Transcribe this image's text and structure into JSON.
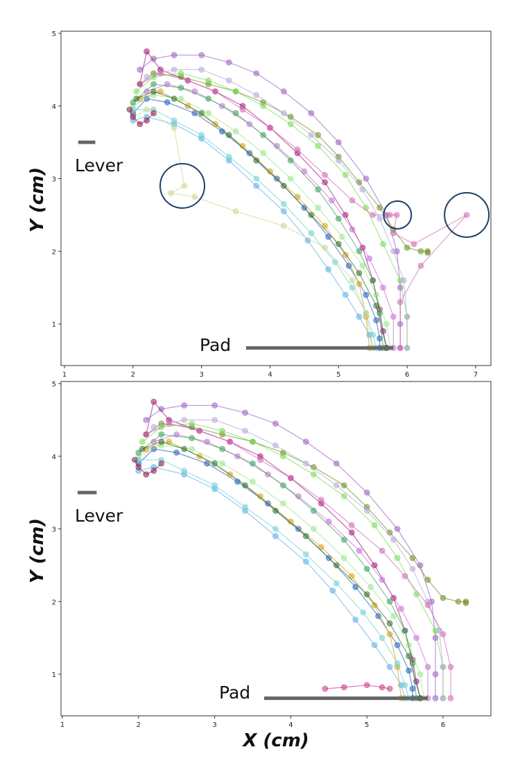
{
  "chart_data": [
    {
      "type": "line",
      "panel": "top",
      "xlim": [
        1,
        7
      ],
      "ylim": [
        0.55,
        5
      ],
      "xticks": [
        1,
        2,
        3,
        4,
        5,
        6,
        7
      ],
      "yticks": [
        1,
        2,
        3,
        4,
        5
      ],
      "xlabel": "",
      "ylabel": "Y (cm)",
      "markers": true,
      "grid": false,
      "lever": {
        "label": "Lever",
        "x": [
          1.2,
          1.45
        ],
        "y": 3.5
      },
      "pad": {
        "label": "Pad",
        "x": [
          3.65,
          5.8
        ],
        "y": 0.67
      },
      "highlighted_outliers": [
        {
          "x": 2.72,
          "y": 2.9
        },
        {
          "x": 5.86,
          "y": 2.5
        },
        {
          "x": 6.87,
          "y": 2.5
        }
      ],
      "series": [
        {
          "color": "#9b5fc0",
          "x": [
            2.1,
            2.3,
            2.6,
            3.0,
            3.4,
            3.8,
            4.2,
            4.6,
            5.0,
            5.4,
            5.7,
            5.85,
            5.9,
            5.9,
            5.9
          ],
          "y": [
            4.5,
            4.65,
            4.7,
            4.7,
            4.6,
            4.45,
            4.2,
            3.9,
            3.5,
            3.0,
            2.5,
            2.0,
            1.5,
            1.0,
            0.67
          ]
        },
        {
          "color": "#6b8e23",
          "x": [
            2.1,
            2.3,
            2.7,
            3.1,
            3.5,
            3.9,
            4.3,
            4.7,
            5.0,
            5.3,
            5.6,
            5.8,
            6.0,
            6.2,
            6.3,
            6.3
          ],
          "y": [
            4.3,
            4.45,
            4.4,
            4.3,
            4.2,
            4.05,
            3.85,
            3.6,
            3.3,
            2.95,
            2.6,
            2.3,
            2.05,
            2.0,
            2.0,
            1.98
          ]
        },
        {
          "color": "#77dd55",
          "x": [
            2.05,
            2.3,
            2.7,
            3.1,
            3.5,
            3.9,
            4.3,
            4.7,
            5.1,
            5.4,
            5.65,
            5.9,
            6.0,
            6.0
          ],
          "y": [
            4.2,
            4.4,
            4.45,
            4.35,
            4.2,
            4.0,
            3.75,
            3.45,
            3.05,
            2.6,
            2.1,
            1.6,
            1.1,
            0.67
          ]
        },
        {
          "color": "#1f5fbf",
          "x": [
            2.0,
            2.2,
            2.5,
            2.9,
            3.3,
            3.7,
            4.1,
            4.5,
            4.85,
            5.15,
            5.4,
            5.55,
            5.6,
            5.6
          ],
          "y": [
            3.9,
            4.1,
            4.05,
            3.9,
            3.65,
            3.35,
            3.0,
            2.6,
            2.2,
            1.8,
            1.4,
            1.05,
            0.8,
            0.67
          ]
        },
        {
          "color": "#5aaee8",
          "x": [
            2.0,
            2.2,
            2.6,
            3.0,
            3.4,
            3.8,
            4.2,
            4.55,
            4.85,
            5.1,
            5.3,
            5.45,
            5.5
          ],
          "y": [
            3.8,
            3.85,
            3.75,
            3.55,
            3.25,
            2.9,
            2.55,
            2.15,
            1.75,
            1.4,
            1.1,
            0.85,
            0.67
          ]
        },
        {
          "color": "#a0177a",
          "x": [
            2.1,
            2.2,
            2.4,
            2.8,
            3.2,
            3.6,
            4.0,
            4.4,
            4.8,
            5.1,
            5.35,
            5.5,
            5.6,
            5.65,
            5.7
          ],
          "y": [
            4.3,
            4.75,
            4.5,
            4.35,
            4.2,
            4.0,
            3.7,
            3.35,
            2.95,
            2.5,
            2.05,
            1.6,
            1.2,
            0.9,
            0.67
          ]
        },
        {
          "color": "#c46fd6",
          "x": [
            2.2,
            2.5,
            2.9,
            3.3,
            3.7,
            4.1,
            4.5,
            4.9,
            5.2,
            5.45,
            5.65,
            5.8,
            5.8
          ],
          "y": [
            4.2,
            4.3,
            4.2,
            4.0,
            3.75,
            3.45,
            3.1,
            2.7,
            2.3,
            1.9,
            1.5,
            1.1,
            0.67
          ]
        },
        {
          "color": "#98e88a",
          "x": [
            2.0,
            2.3,
            2.7,
            3.1,
            3.5,
            3.9,
            4.3,
            4.7,
            5.05,
            5.35,
            5.55,
            5.7,
            5.75
          ],
          "y": [
            4.0,
            4.15,
            4.1,
            3.9,
            3.65,
            3.35,
            3.0,
            2.6,
            2.2,
            1.8,
            1.4,
            1.0,
            0.67
          ]
        },
        {
          "color": "#d4a017",
          "x": [
            2.1,
            2.4,
            2.8,
            3.2,
            3.6,
            4.0,
            4.4,
            4.8,
            5.1,
            5.3,
            5.4,
            5.45
          ],
          "y": [
            4.1,
            4.2,
            4.0,
            3.75,
            3.45,
            3.1,
            2.75,
            2.35,
            1.95,
            1.55,
            1.1,
            0.67
          ]
        },
        {
          "color": "#3aa05a",
          "x": [
            2.0,
            2.3,
            2.7,
            3.1,
            3.5,
            3.9,
            4.3,
            4.7,
            5.0,
            5.3,
            5.5,
            5.6,
            5.65
          ],
          "y": [
            4.05,
            4.3,
            4.25,
            4.1,
            3.9,
            3.6,
            3.25,
            2.85,
            2.45,
            2.0,
            1.6,
            1.15,
            0.67
          ]
        },
        {
          "color": "#b5a7d8",
          "x": [
            2.2,
            2.6,
            3.0,
            3.4,
            3.8,
            4.2,
            4.6,
            5.0,
            5.35,
            5.6,
            5.8,
            5.95,
            6.0,
            6.0
          ],
          "y": [
            4.4,
            4.5,
            4.5,
            4.35,
            4.15,
            3.9,
            3.6,
            3.25,
            2.85,
            2.45,
            2.0,
            1.6,
            1.1,
            0.67
          ]
        },
        {
          "color": "#6fd0d0",
          "x": [
            2.0,
            2.3,
            2.6,
            3.0,
            3.4,
            3.8,
            4.2,
            4.6,
            4.95,
            5.2,
            5.4,
            5.5,
            5.55
          ],
          "y": [
            3.95,
            3.95,
            3.8,
            3.6,
            3.3,
            3.0,
            2.65,
            2.25,
            1.85,
            1.5,
            1.15,
            0.85,
            0.67
          ]
        },
        {
          "color": "#c8d890",
          "x": [
            2.0,
            2.2,
            2.6,
            2.75,
            2.55,
            2.9,
            3.5,
            4.2,
            4.8,
            5.2,
            5.4,
            5.5
          ],
          "y": [
            3.85,
            3.95,
            3.7,
            2.9,
            2.8,
            2.75,
            2.55,
            2.35,
            2.05,
            1.6,
            1.15,
            0.67
          ]
        },
        {
          "color": "#d06ab0",
          "x": [
            2.1,
            2.4,
            2.8,
            3.2,
            3.6,
            4.0,
            4.4,
            4.8,
            5.2,
            5.5,
            5.75,
            5.85,
            5.8,
            6.1,
            6.87,
            6.2,
            5.9,
            5.9
          ],
          "y": [
            4.3,
            4.45,
            4.35,
            4.2,
            3.95,
            3.7,
            3.4,
            3.05,
            2.7,
            2.5,
            2.5,
            2.5,
            2.25,
            2.1,
            2.5,
            1.8,
            1.3,
            0.67
          ]
        },
        {
          "color": "#2e6e2e",
          "x": [
            2.05,
            2.3,
            2.6,
            3.0,
            3.4,
            3.8,
            4.2,
            4.6,
            5.0,
            5.3,
            5.55,
            5.7
          ],
          "y": [
            4.1,
            4.2,
            4.1,
            3.9,
            3.6,
            3.25,
            2.9,
            2.5,
            2.1,
            1.7,
            1.25,
            0.67
          ]
        },
        {
          "color": "#8a1a4a",
          "x": [
            1.95,
            2.0,
            2.1,
            2.2,
            2.3
          ],
          "y": [
            3.95,
            3.85,
            3.75,
            3.8,
            3.9
          ]
        }
      ]
    },
    {
      "type": "line",
      "panel": "bottom",
      "xlim": [
        1,
        6.6
      ],
      "ylim": [
        0.55,
        5
      ],
      "xticks": [
        1,
        2,
        3,
        4,
        5,
        6
      ],
      "yticks": [
        1,
        2,
        3,
        4,
        5
      ],
      "xlabel": "X (cm)",
      "ylabel": "Y (cm)",
      "markers": true,
      "grid": false,
      "lever": {
        "label": "Lever",
        "x": [
          1.2,
          1.45
        ],
        "y": 3.5
      },
      "pad": {
        "label": "Pad",
        "x": [
          3.65,
          5.8
        ],
        "y": 0.67
      },
      "series": [
        {
          "color": "#9b5fc0",
          "x": [
            2.1,
            2.3,
            2.6,
            3.0,
            3.4,
            3.8,
            4.2,
            4.6,
            5.0,
            5.4,
            5.7,
            5.85,
            5.9,
            5.9,
            5.9
          ],
          "y": [
            4.5,
            4.65,
            4.7,
            4.7,
            4.6,
            4.45,
            4.2,
            3.9,
            3.5,
            3.0,
            2.5,
            2.0,
            1.5,
            1.0,
            0.67
          ]
        },
        {
          "color": "#6b8e23",
          "x": [
            2.1,
            2.3,
            2.7,
            3.1,
            3.5,
            3.9,
            4.3,
            4.7,
            5.0,
            5.3,
            5.6,
            5.8,
            6.0,
            6.2,
            6.3,
            6.3
          ],
          "y": [
            4.3,
            4.45,
            4.4,
            4.3,
            4.2,
            4.05,
            3.85,
            3.6,
            3.3,
            2.95,
            2.6,
            2.3,
            2.05,
            2.0,
            2.0,
            1.98
          ]
        },
        {
          "color": "#77dd55",
          "x": [
            2.05,
            2.3,
            2.7,
            3.1,
            3.5,
            3.9,
            4.3,
            4.7,
            5.1,
            5.4,
            5.65,
            5.9,
            6.0,
            6.0
          ],
          "y": [
            4.2,
            4.4,
            4.45,
            4.35,
            4.2,
            4.0,
            3.75,
            3.45,
            3.05,
            2.6,
            2.1,
            1.6,
            1.1,
            0.67
          ]
        },
        {
          "color": "#1f5fbf",
          "x": [
            2.0,
            2.2,
            2.5,
            2.9,
            3.3,
            3.7,
            4.1,
            4.5,
            4.85,
            5.15,
            5.4,
            5.55,
            5.6,
            5.6
          ],
          "y": [
            3.9,
            4.1,
            4.05,
            3.9,
            3.65,
            3.35,
            3.0,
            2.6,
            2.2,
            1.8,
            1.4,
            1.05,
            0.8,
            0.67
          ]
        },
        {
          "color": "#5aaee8",
          "x": [
            2.0,
            2.2,
            2.6,
            3.0,
            3.4,
            3.8,
            4.2,
            4.55,
            4.85,
            5.1,
            5.3,
            5.45,
            5.5
          ],
          "y": [
            3.8,
            3.85,
            3.75,
            3.55,
            3.25,
            2.9,
            2.55,
            2.15,
            1.75,
            1.4,
            1.1,
            0.85,
            0.67
          ]
        },
        {
          "color": "#a0177a",
          "x": [
            2.1,
            2.2,
            2.4,
            2.8,
            3.2,
            3.6,
            4.0,
            4.4,
            4.8,
            5.1,
            5.35,
            5.5,
            5.6,
            5.65,
            5.7
          ],
          "y": [
            4.3,
            4.75,
            4.5,
            4.35,
            4.2,
            4.0,
            3.7,
            3.35,
            2.95,
            2.5,
            2.05,
            1.6,
            1.2,
            0.9,
            0.67
          ]
        },
        {
          "color": "#c46fd6",
          "x": [
            2.2,
            2.5,
            2.9,
            3.3,
            3.7,
            4.1,
            4.5,
            4.9,
            5.2,
            5.45,
            5.65,
            5.8,
            5.8
          ],
          "y": [
            4.2,
            4.3,
            4.2,
            4.0,
            3.75,
            3.45,
            3.1,
            2.7,
            2.3,
            1.9,
            1.5,
            1.1,
            0.67
          ]
        },
        {
          "color": "#98e88a",
          "x": [
            2.0,
            2.3,
            2.7,
            3.1,
            3.5,
            3.9,
            4.3,
            4.7,
            5.05,
            5.35,
            5.55,
            5.7,
            5.75
          ],
          "y": [
            4.0,
            4.15,
            4.1,
            3.9,
            3.65,
            3.35,
            3.0,
            2.6,
            2.2,
            1.8,
            1.4,
            1.0,
            0.67
          ]
        },
        {
          "color": "#d4a017",
          "x": [
            2.1,
            2.4,
            2.8,
            3.2,
            3.6,
            4.0,
            4.4,
            4.8,
            5.1,
            5.3,
            5.4,
            5.45
          ],
          "y": [
            4.1,
            4.2,
            4.0,
            3.75,
            3.45,
            3.1,
            2.75,
            2.35,
            1.95,
            1.55,
            1.1,
            0.67
          ]
        },
        {
          "color": "#3aa05a",
          "x": [
            2.0,
            2.3,
            2.7,
            3.1,
            3.5,
            3.9,
            4.3,
            4.7,
            5.0,
            5.3,
            5.5,
            5.6,
            5.65
          ],
          "y": [
            4.05,
            4.3,
            4.25,
            4.1,
            3.9,
            3.6,
            3.25,
            2.85,
            2.45,
            2.0,
            1.6,
            1.15,
            0.67
          ]
        },
        {
          "color": "#b5a7d8",
          "x": [
            2.2,
            2.6,
            3.0,
            3.4,
            3.8,
            4.2,
            4.6,
            5.0,
            5.35,
            5.6,
            5.8,
            5.95,
            6.0,
            6.0
          ],
          "y": [
            4.4,
            4.5,
            4.5,
            4.35,
            4.15,
            3.9,
            3.6,
            3.25,
            2.85,
            2.45,
            2.0,
            1.6,
            1.1,
            0.67
          ]
        },
        {
          "color": "#6fd0d0",
          "x": [
            2.0,
            2.3,
            2.6,
            3.0,
            3.4,
            3.8,
            4.2,
            4.6,
            4.95,
            5.2,
            5.4,
            5.5,
            5.55
          ],
          "y": [
            3.95,
            3.95,
            3.8,
            3.6,
            3.3,
            3.0,
            2.65,
            2.25,
            1.85,
            1.5,
            1.15,
            0.85,
            0.67
          ]
        },
        {
          "color": "#d06ab0",
          "x": [
            2.1,
            2.4,
            2.8,
            3.2,
            3.6,
            4.0,
            4.4,
            4.8,
            5.2,
            5.5,
            5.8,
            6.0,
            6.1,
            6.1
          ],
          "y": [
            4.3,
            4.45,
            4.35,
            4.2,
            3.95,
            3.7,
            3.4,
            3.05,
            2.7,
            2.35,
            1.95,
            1.55,
            1.1,
            0.67
          ]
        },
        {
          "color": "#2e6e2e",
          "x": [
            2.05,
            2.3,
            2.6,
            3.0,
            3.4,
            3.8,
            4.2,
            4.6,
            5.0,
            5.3,
            5.55,
            5.7
          ],
          "y": [
            4.1,
            4.2,
            4.1,
            3.9,
            3.6,
            3.25,
            2.9,
            2.5,
            2.1,
            1.7,
            1.25,
            0.67
          ]
        },
        {
          "color": "#cc3388",
          "x": [
            4.45,
            4.7,
            5.0,
            5.2,
            5.3
          ],
          "y": [
            0.8,
            0.82,
            0.85,
            0.82,
            0.8
          ]
        },
        {
          "color": "#8a1a4a",
          "x": [
            1.95,
            2.0,
            2.1,
            2.2,
            2.3
          ],
          "y": [
            3.95,
            3.85,
            3.75,
            3.8,
            3.9
          ]
        }
      ]
    }
  ]
}
